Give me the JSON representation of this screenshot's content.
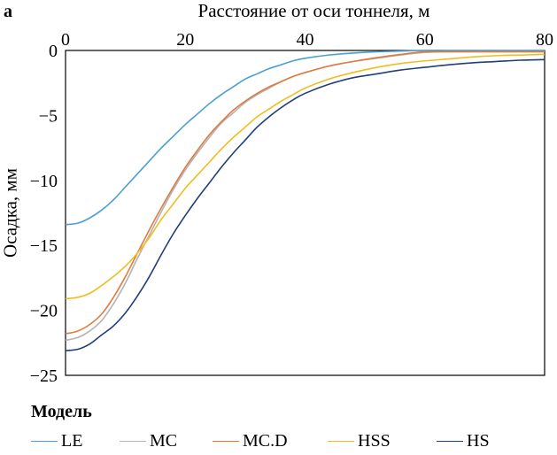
{
  "panel_label": "а",
  "chart_data": {
    "type": "line",
    "title": "Расстояние от оси тоннеля, м",
    "xlabel": "Расстояние от оси тоннеля, м",
    "ylabel": "Осадка, мм",
    "xlim": [
      0,
      80
    ],
    "ylim": [
      -25,
      0
    ],
    "x_ticks": [
      0,
      20,
      40,
      60,
      80
    ],
    "y_ticks": [
      0,
      -5,
      -10,
      -15,
      -20,
      -25
    ],
    "x_tick_labels": [
      "0",
      "20",
      "40",
      "60",
      "80"
    ],
    "y_tick_labels": [
      "0",
      "−5",
      "−10",
      "−15",
      "−20",
      "−25"
    ],
    "grid": false,
    "legend_title": "Модель",
    "legend_position": "bottom",
    "x": [
      0,
      2,
      4,
      6,
      8,
      10,
      12,
      14,
      16,
      18,
      20,
      22,
      24,
      26,
      28,
      30,
      32,
      34,
      36,
      38,
      40,
      44,
      48,
      52,
      56,
      60,
      64,
      68,
      72,
      76,
      80
    ],
    "series": [
      {
        "name": "LE",
        "color": "#4a9fcf",
        "values": [
          -13.4,
          -13.3,
          -12.9,
          -12.3,
          -11.5,
          -10.5,
          -9.5,
          -8.5,
          -7.5,
          -6.6,
          -5.7,
          -4.9,
          -4.1,
          -3.4,
          -2.8,
          -2.2,
          -1.8,
          -1.4,
          -1.1,
          -0.8,
          -0.6,
          -0.35,
          -0.2,
          -0.1,
          -0.05,
          0,
          0,
          0,
          0,
          0,
          0
        ]
      },
      {
        "name": "MC",
        "color": "#b3b3b3",
        "values": [
          -22.3,
          -22.1,
          -21.6,
          -20.8,
          -19.5,
          -17.9,
          -16.0,
          -14.2,
          -12.4,
          -10.7,
          -9.2,
          -7.9,
          -6.7,
          -5.6,
          -4.8,
          -4.0,
          -3.4,
          -2.9,
          -2.4,
          -2.0,
          -1.7,
          -1.2,
          -0.85,
          -0.6,
          -0.35,
          -0.15,
          -0.1,
          -0.1,
          -0.1,
          -0.1,
          -0.1
        ]
      },
      {
        "name": "MC.D",
        "color": "#e07b3e",
        "values": [
          -21.8,
          -21.6,
          -21.1,
          -20.3,
          -19.0,
          -17.4,
          -15.6,
          -13.8,
          -12.1,
          -10.5,
          -9.0,
          -7.7,
          -6.5,
          -5.5,
          -4.6,
          -3.9,
          -3.3,
          -2.8,
          -2.4,
          -2.0,
          -1.7,
          -1.2,
          -0.85,
          -0.55,
          -0.3,
          -0.1,
          -0.1,
          -0.1,
          -0.1,
          -0.1,
          -0.1
        ]
      },
      {
        "name": "HSS",
        "color": "#f2bc1f",
        "values": [
          -19.1,
          -19.0,
          -18.7,
          -18.1,
          -17.4,
          -16.6,
          -15.6,
          -14.4,
          -13.0,
          -11.8,
          -10.6,
          -9.6,
          -8.6,
          -7.6,
          -6.7,
          -5.9,
          -5.1,
          -4.5,
          -3.9,
          -3.4,
          -2.9,
          -2.2,
          -1.7,
          -1.3,
          -1.0,
          -0.8,
          -0.65,
          -0.5,
          -0.4,
          -0.35,
          -0.3
        ]
      },
      {
        "name": "HS",
        "color": "#1f3f7a",
        "values": [
          -23.1,
          -23.0,
          -22.6,
          -21.9,
          -21.2,
          -20.2,
          -18.9,
          -17.4,
          -15.7,
          -14.1,
          -12.7,
          -11.4,
          -10.2,
          -9.0,
          -7.9,
          -6.9,
          -5.9,
          -5.1,
          -4.4,
          -3.8,
          -3.3,
          -2.6,
          -2.1,
          -1.8,
          -1.5,
          -1.3,
          -1.1,
          -0.95,
          -0.85,
          -0.75,
          -0.7
        ]
      }
    ]
  }
}
